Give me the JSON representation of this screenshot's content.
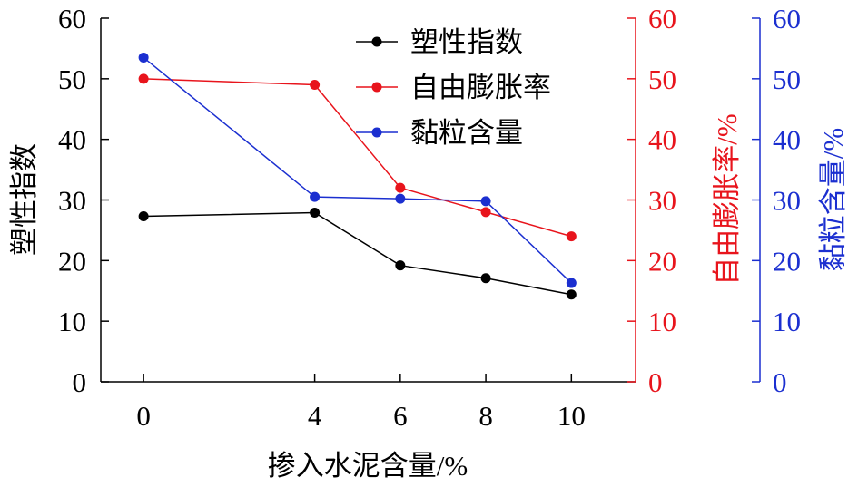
{
  "chart_data": {
    "type": "line",
    "xlabel": "掺入水泥含量/%",
    "x": [
      0,
      4,
      6,
      8,
      10
    ],
    "x_tick_labels": [
      "0",
      "4",
      "6",
      "8",
      "10"
    ],
    "y_ticks": [
      "0",
      "10",
      "20",
      "30",
      "40",
      "50",
      "60"
    ],
    "ylim": [
      0,
      60
    ],
    "grid": false,
    "legend_position": "top-right",
    "axes": [
      {
        "id": "left",
        "label": "塑性指数",
        "color": "#000000"
      },
      {
        "id": "right1",
        "label": "自由膨胀率/%",
        "color": "#e8141c"
      },
      {
        "id": "right2",
        "label": "黏粒含量/%",
        "color": "#1b2fd0"
      }
    ],
    "series": [
      {
        "name": "塑性指数",
        "axis": "left",
        "color": "#000000",
        "values": [
          27.3,
          27.9,
          19.2,
          17.1,
          14.4
        ]
      },
      {
        "name": "自由膨胀率",
        "axis": "right1",
        "color": "#e8141c",
        "values": [
          50.0,
          49.0,
          32.0,
          28.0,
          24.0
        ]
      },
      {
        "name": "黏粒含量",
        "axis": "right2",
        "color": "#1b2fd0",
        "values": [
          53.5,
          30.5,
          30.2,
          29.8,
          16.3
        ]
      }
    ]
  }
}
